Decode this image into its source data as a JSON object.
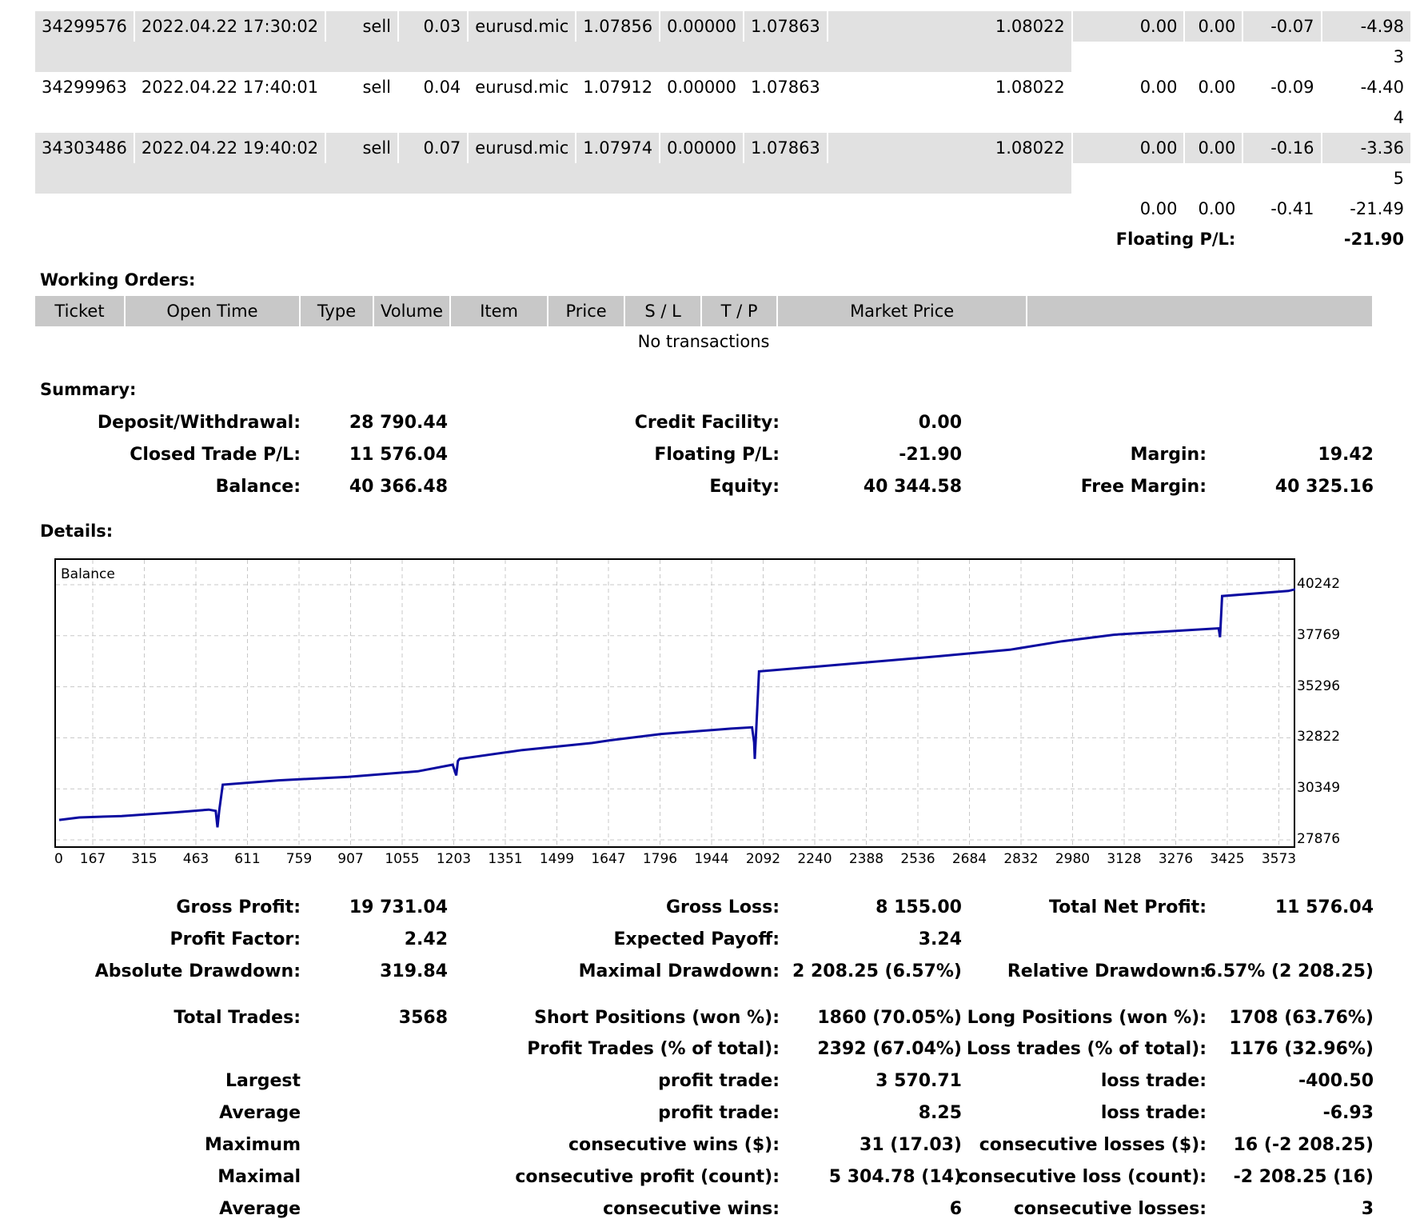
{
  "positions": [
    {
      "ticket": "34299576",
      "open_time": "2022.04.22 17:30:02",
      "type": "sell",
      "volume": "0.03",
      "item": "eurusd.mic",
      "price": "1.07856",
      "sl": "0.00000",
      "tp": "1.07863",
      "market_price": "1.08022",
      "commission": "0.00",
      "taxes": "0.00",
      "swap": "-0.07",
      "profit": "-4.98",
      "row_no": "3"
    },
    {
      "ticket": "34299963",
      "open_time": "2022.04.22 17:40:01",
      "type": "sell",
      "volume": "0.04",
      "item": "eurusd.mic",
      "price": "1.07912",
      "sl": "0.00000",
      "tp": "1.07863",
      "market_price": "1.08022",
      "commission": "0.00",
      "taxes": "0.00",
      "swap": "-0.09",
      "profit": "-4.40",
      "row_no": "4"
    },
    {
      "ticket": "34303486",
      "open_time": "2022.04.22 19:40:02",
      "type": "sell",
      "volume": "0.07",
      "item": "eurusd.mic",
      "price": "1.07974",
      "sl": "0.00000",
      "tp": "1.07863",
      "market_price": "1.08022",
      "commission": "0.00",
      "taxes": "0.00",
      "swap": "-0.16",
      "profit": "-3.36",
      "row_no": "5"
    }
  ],
  "totals": {
    "commission": "0.00",
    "taxes": "0.00",
    "swap": "-0.41",
    "profit": "-21.49"
  },
  "floating": {
    "label": "Floating P/L:",
    "value": "-21.90"
  },
  "working_orders": {
    "title": "Working Orders:",
    "headers": [
      "Ticket",
      "Open Time",
      "Type",
      "Volume",
      "Item",
      "Price",
      "S / L",
      "T / P",
      "Market Price"
    ],
    "empty_text": "No transactions"
  },
  "summary": {
    "title": "Summary:",
    "deposit_label": "Deposit/Withdrawal:",
    "deposit_value": "28 790.44",
    "credit_label": "Credit Facility:",
    "credit_value": "0.00",
    "closed_label": "Closed Trade P/L:",
    "closed_value": "11 576.04",
    "floating_label": "Floating P/L:",
    "floating_value": "-21.90",
    "margin_label": "Margin:",
    "margin_value": "19.42",
    "balance_label": "Balance:",
    "balance_value": "40 366.48",
    "equity_label": "Equity:",
    "equity_value": "40 344.58",
    "free_margin_label": "Free Margin:",
    "free_margin_value": "40 325.16"
  },
  "details": {
    "title": "Details:",
    "rows": [
      [
        "Gross Profit:",
        "19 731.04",
        "Gross Loss:",
        "8 155.00",
        "Total Net Profit:",
        "11 576.04"
      ],
      [
        "Profit Factor:",
        "2.42",
        "Expected Payoff:",
        "3.24",
        "",
        ""
      ],
      [
        "Absolute Drawdown:",
        "319.84",
        "Maximal Drawdown:",
        "2 208.25 (6.57%)",
        "Relative Drawdown:",
        "6.57% (2 208.25)"
      ],
      [
        "Total Trades:",
        "3568",
        "Short Positions (won %):",
        "1860 (70.05%)",
        "Long Positions (won %):",
        "1708 (63.76%)"
      ],
      [
        "",
        "",
        "Profit Trades (% of total):",
        "2392 (67.04%)",
        "Loss trades (% of total):",
        "1176 (32.96%)"
      ],
      [
        "Largest",
        "",
        "profit trade:",
        "3 570.71",
        "loss trade:",
        "-400.50"
      ],
      [
        "Average",
        "",
        "profit trade:",
        "8.25",
        "loss trade:",
        "-6.93"
      ],
      [
        "Maximum",
        "",
        "consecutive wins ($):",
        "31 (17.03)",
        "consecutive losses ($):",
        "16 (-2 208.25)"
      ],
      [
        "Maximal",
        "",
        "consecutive profit (count):",
        "5 304.78 (14)",
        "consecutive loss (count):",
        "-2 208.25 (16)"
      ],
      [
        "Average",
        "",
        "consecutive wins:",
        "6",
        "consecutive losses:",
        "3"
      ]
    ]
  },
  "chart_data": {
    "type": "line",
    "title": "Balance",
    "xlabel": "",
    "ylabel": "",
    "x_ticks": [
      "0",
      "167",
      "315",
      "463",
      "611",
      "759",
      "907",
      "1055",
      "1203",
      "1351",
      "1499",
      "1647",
      "1796",
      "1944",
      "2092",
      "2240",
      "2388",
      "2536",
      "2684",
      "2832",
      "2980",
      "3128",
      "3276",
      "3425",
      "3573"
    ],
    "y_ticks": [
      "40242",
      "37769",
      "35296",
      "32822",
      "30349",
      "27876"
    ],
    "xlim": [
      0,
      3640
    ],
    "ylim": [
      27876,
      40242
    ],
    "grid": true,
    "color": "#0a0aa0",
    "series": [
      {
        "name": "Balance",
        "x": [
          0,
          100,
          250,
          400,
          500,
          520,
          525,
          530,
          540,
          700,
          900,
          1100,
          1200,
          1210,
          1215,
          1220,
          1400,
          1600,
          1650,
          1800,
          2000,
          2060,
          2066,
          2068,
          2072,
          2080,
          2300,
          2600,
          2800,
          2950,
          3100,
          3300,
          3400,
          3404,
          3410,
          3600,
          3640
        ],
        "y": [
          28840,
          28960,
          29030,
          29200,
          29340,
          29280,
          28480,
          29300,
          30550,
          30760,
          30930,
          31200,
          31520,
          31000,
          31700,
          31800,
          32230,
          32570,
          32700,
          33010,
          33270,
          33330,
          32600,
          31800,
          33200,
          36040,
          36350,
          36780,
          37090,
          37500,
          37820,
          38030,
          38130,
          37700,
          39690,
          39940,
          40100
        ]
      }
    ]
  }
}
